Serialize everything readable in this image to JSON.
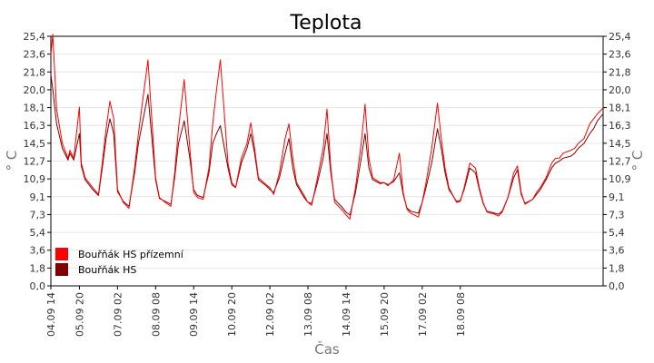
{
  "chart_data": {
    "type": "line",
    "title": "Teplota",
    "xlabel": "Čas",
    "ylabel": "° C",
    "ylim": [
      0,
      25.4
    ],
    "yticks": [
      "0,0",
      "1,8",
      "3,6",
      "5,4",
      "7,3",
      "9,1",
      "10,9",
      "12,7",
      "14,5",
      "16,3",
      "18,1",
      "20,0",
      "21,8",
      "23,6",
      "25,4"
    ],
    "xlim": [
      0,
      14.5
    ],
    "xticks": [
      {
        "x": 0,
        "label": "04.09 14"
      },
      {
        "x": 0.75,
        "label": "05.09 20"
      },
      {
        "x": 1.75,
        "label": "07.09 02"
      },
      {
        "x": 2.75,
        "label": "08.09 08"
      },
      {
        "x": 3.75,
        "label": "09.09 14"
      },
      {
        "x": 4.75,
        "label": "10.09 20"
      },
      {
        "x": 5.75,
        "label": "12.09 02"
      },
      {
        "x": 6.75,
        "label": "13.09 08"
      },
      {
        "x": 7.75,
        "label": "14.09 14"
      },
      {
        "x": 8.75,
        "label": "15.09 20"
      },
      {
        "x": 9.75,
        "label": "17.09 02"
      },
      {
        "x": 10.75,
        "label": "18.09 08"
      }
    ],
    "grid": true,
    "legend_position": "bottom-left",
    "series": [
      {
        "name": "Bouřňák HS přízemní",
        "color": "#ff0000",
        "x": [
          0,
          0.05,
          0.15,
          0.3,
          0.45,
          0.5,
          0.6,
          0.75,
          0.8,
          0.9,
          1.1,
          1.25,
          1.35,
          1.45,
          1.55,
          1.65,
          1.75,
          1.9,
          2.05,
          2.2,
          2.3,
          2.4,
          2.55,
          2.75,
          2.85,
          3.0,
          3.15,
          3.25,
          3.35,
          3.5,
          3.65,
          3.75,
          3.85,
          4.0,
          4.15,
          4.25,
          4.35,
          4.45,
          4.65,
          4.75,
          4.85,
          5.0,
          5.15,
          5.25,
          5.35,
          5.45,
          5.65,
          5.75,
          5.85,
          6.0,
          6.15,
          6.25,
          6.35,
          6.45,
          6.65,
          6.75,
          6.85,
          7.0,
          7.15,
          7.25,
          7.35,
          7.45,
          7.65,
          7.75,
          7.85,
          8.0,
          8.15,
          8.25,
          8.35,
          8.45,
          8.65,
          8.75,
          8.85,
          9.0,
          9.15,
          9.25,
          9.35,
          9.45,
          9.65,
          9.75,
          9.85,
          10.0,
          10.15,
          10.25,
          10.35,
          10.45,
          10.65,
          10.75,
          10.85,
          11.0,
          11.15,
          11.25,
          11.35,
          11.45,
          11.65,
          11.75,
          11.85,
          12.0,
          12.15,
          12.25,
          12.35,
          12.45,
          12.65,
          12.75,
          12.85,
          13.0,
          13.15,
          13.25,
          13.35,
          13.45,
          13.65,
          13.75,
          13.85,
          14.0,
          14.15,
          14.25,
          14.35,
          14.5
        ],
        "y": [
          23.5,
          25.6,
          18.0,
          14.5,
          13.0,
          13.8,
          13.0,
          18.2,
          12.5,
          11.0,
          10.0,
          9.3,
          12.5,
          16.0,
          18.8,
          17.0,
          9.8,
          8.5,
          7.9,
          12.0,
          15.5,
          18.5,
          23.0,
          11.0,
          9.0,
          8.5,
          8.1,
          11.5,
          16.0,
          21.0,
          14.0,
          9.5,
          9.0,
          8.8,
          12.0,
          16.5,
          20.0,
          23.0,
          12.5,
          10.5,
          10.0,
          13.0,
          14.5,
          16.6,
          14.0,
          11.0,
          10.3,
          10.0,
          9.3,
          11.5,
          15.0,
          16.5,
          13.0,
          10.5,
          9.2,
          8.5,
          8.2,
          11.0,
          14.0,
          18.0,
          12.0,
          8.5,
          7.7,
          7.2,
          6.8,
          10.0,
          14.5,
          18.5,
          13.0,
          11.0,
          10.5,
          10.5,
          10.2,
          10.8,
          13.5,
          9.5,
          7.8,
          7.4,
          7.0,
          8.5,
          10.5,
          14.0,
          18.6,
          15.0,
          12.0,
          10.0,
          8.5,
          8.6,
          10.0,
          12.5,
          12.0,
          10.0,
          8.5,
          7.5,
          7.3,
          7.1,
          7.5,
          9.0,
          11.5,
          12.2,
          9.5,
          8.3,
          8.8,
          9.5,
          10.0,
          11.0,
          12.5,
          13.0,
          13.0,
          13.5,
          13.8,
          14.0,
          14.5,
          15.0,
          16.5,
          17.0,
          17.5,
          18.1
        ]
      },
      {
        "name": "Bouřňák HS",
        "color": "#800000",
        "x": [
          0,
          0.05,
          0.15,
          0.3,
          0.45,
          0.5,
          0.6,
          0.75,
          0.8,
          0.9,
          1.1,
          1.25,
          1.35,
          1.45,
          1.55,
          1.65,
          1.75,
          1.9,
          2.05,
          2.2,
          2.3,
          2.4,
          2.55,
          2.75,
          2.85,
          3.0,
          3.15,
          3.25,
          3.35,
          3.5,
          3.65,
          3.75,
          3.85,
          4.0,
          4.15,
          4.25,
          4.35,
          4.45,
          4.65,
          4.75,
          4.85,
          5.0,
          5.15,
          5.25,
          5.35,
          5.45,
          5.65,
          5.75,
          5.85,
          6.0,
          6.15,
          6.25,
          6.35,
          6.45,
          6.65,
          6.75,
          6.85,
          7.0,
          7.15,
          7.25,
          7.35,
          7.45,
          7.65,
          7.75,
          7.85,
          8.0,
          8.15,
          8.25,
          8.35,
          8.45,
          8.65,
          8.75,
          8.85,
          9.0,
          9.15,
          9.25,
          9.35,
          9.45,
          9.65,
          9.75,
          9.85,
          10.0,
          10.15,
          10.25,
          10.35,
          10.45,
          10.65,
          10.75,
          10.85,
          11.0,
          11.15,
          11.25,
          11.35,
          11.45,
          11.65,
          11.75,
          11.85,
          12.0,
          12.15,
          12.25,
          12.35,
          12.45,
          12.65,
          12.75,
          12.85,
          13.0,
          13.15,
          13.25,
          13.35,
          13.45,
          13.65,
          13.75,
          13.85,
          14.0,
          14.15,
          14.25,
          14.35,
          14.5
        ],
        "y": [
          21.5,
          20.0,
          16.5,
          14.0,
          12.8,
          13.5,
          12.8,
          15.5,
          12.2,
          10.8,
          9.8,
          9.2,
          12.0,
          15.0,
          17.0,
          15.5,
          9.6,
          8.6,
          8.1,
          11.5,
          14.5,
          16.5,
          19.5,
          10.8,
          8.9,
          8.6,
          8.3,
          11.0,
          14.5,
          16.8,
          13.0,
          9.8,
          9.2,
          9.0,
          11.5,
          14.5,
          15.5,
          16.3,
          12.0,
          10.3,
          10.0,
          12.5,
          14.0,
          15.5,
          13.5,
          10.8,
          10.2,
          9.8,
          9.5,
          11.0,
          13.5,
          15.0,
          12.0,
          10.3,
          9.0,
          8.5,
          8.4,
          10.5,
          13.0,
          15.5,
          11.5,
          8.8,
          8.0,
          7.5,
          7.2,
          9.5,
          13.0,
          15.5,
          12.0,
          10.8,
          10.4,
          10.5,
          10.3,
          10.6,
          11.5,
          9.3,
          7.9,
          7.6,
          7.4,
          8.5,
          10.0,
          12.5,
          16.0,
          14.0,
          11.5,
          9.8,
          8.6,
          8.7,
          9.8,
          12.0,
          11.5,
          9.8,
          8.4,
          7.6,
          7.4,
          7.3,
          7.6,
          9.0,
          11.0,
          11.8,
          9.3,
          8.4,
          8.8,
          9.3,
          9.8,
          10.8,
          12.0,
          12.5,
          12.7,
          13.0,
          13.2,
          13.5,
          14.0,
          14.5,
          15.5,
          16.0,
          16.8,
          17.5
        ]
      }
    ]
  }
}
